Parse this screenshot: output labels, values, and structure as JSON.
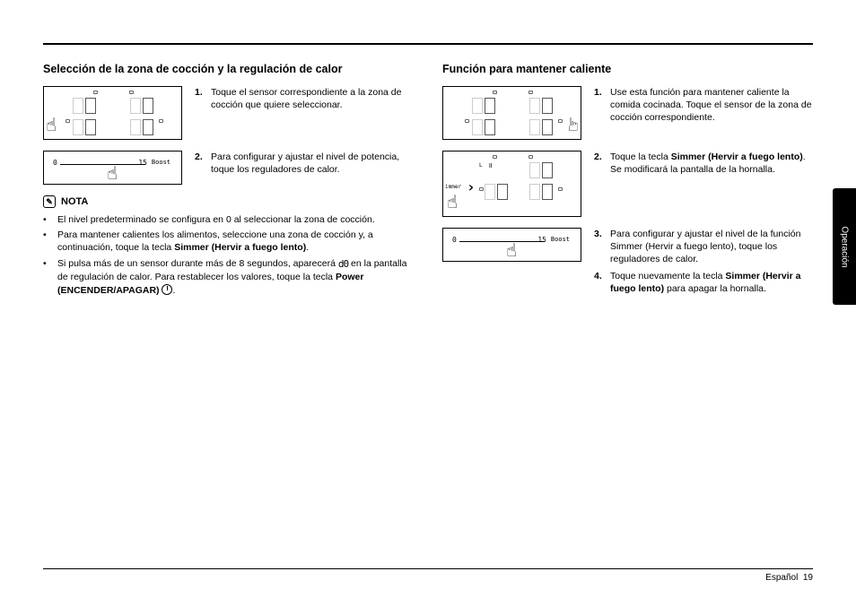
{
  "left": {
    "heading": "Selección de la zona de cocción y la regulación de calor",
    "steps": [
      {
        "num": "1.",
        "text": "Toque el sensor correspondiente a la zona de cocción que quiere seleccionar."
      },
      {
        "num": "2.",
        "text": "Para configurar y ajustar el nivel de potencia, toque los reguladores de calor."
      }
    ],
    "note_label": "NOTA",
    "notes": [
      "El nivel predeterminado se configura en 0 al seleccionar la zona de cocción.",
      "Para mantener calientes los alimentos, seleccione una zona de cocción y, a continuación, toque la tecla <b>Simmer (Hervir a fuego lento)</b>.",
      "Si pulsa más de un sensor durante más de 8 segundos, aparecerá <span class='d0-icon'>d0</span> en la pantalla de regulación de calor. Para restablecer los valores, toque la tecla <b>Power (ENCENDER/APAGAR)</b> <span class='power-icon'></span>."
    ]
  },
  "right": {
    "heading": "Función para mantener caliente",
    "steps": [
      {
        "num": "1.",
        "text": "Use esta función para mantener caliente la comida cocinada. Toque el sensor de la zona de cocción correspondiente."
      },
      {
        "num": "2.",
        "text": "Toque la tecla <b>Simmer (Hervir a fuego lento)</b>. Se modificará la pantalla de la hornalla."
      },
      {
        "num": "3.",
        "text": "Para configurar y ajustar el nivel de la función Simmer (Hervir a fuego lento), toque los reguladores de calor."
      },
      {
        "num": "4.",
        "text": "Toque nuevamente la tecla <b>Simmer (Hervir a fuego lento)</b> para apagar la hornalla."
      }
    ]
  },
  "slider": {
    "start": "0",
    "mid": "15",
    "end": "Boost"
  },
  "side_tab": "Operación",
  "footer": {
    "lang": "Español",
    "page": "19"
  }
}
